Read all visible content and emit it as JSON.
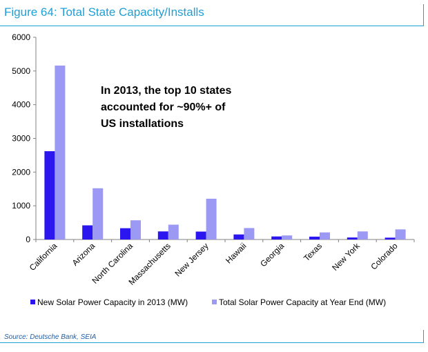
{
  "figure": {
    "title": "Figure 64: Total State Capacity/Installs",
    "source": "Source: Deutsche Bank, SEIA"
  },
  "chart_data": {
    "type": "bar",
    "categories": [
      "California",
      "Arizona",
      "North Carolina",
      "Massachusetts",
      "New Jersey",
      "Hawaii",
      "Georgia",
      "Texas",
      "New York",
      "Colorado"
    ],
    "series": [
      {
        "name": "New Solar Power Capacity in 2013 (MW)",
        "color": "#2b16f0",
        "values": [
          2620,
          420,
          335,
          240,
          235,
          150,
          90,
          85,
          60,
          55
        ]
      },
      {
        "name": "Total Solar Power Capacity at Year End (MW)",
        "color": "#9b99f3",
        "values": [
          5160,
          1520,
          570,
          440,
          1210,
          340,
          120,
          210,
          240,
          300
        ]
      }
    ],
    "yticks": [
      0,
      1000,
      2000,
      3000,
      4000,
      5000,
      6000
    ],
    "ylim": [
      0,
      6000
    ],
    "xlabel": "",
    "ylabel": "",
    "grid": false,
    "legend_position": "bottom",
    "annotation": {
      "lines": [
        "In 2013, the top 10 states",
        " accounted for ~90%+ of",
        "US installations"
      ]
    }
  }
}
